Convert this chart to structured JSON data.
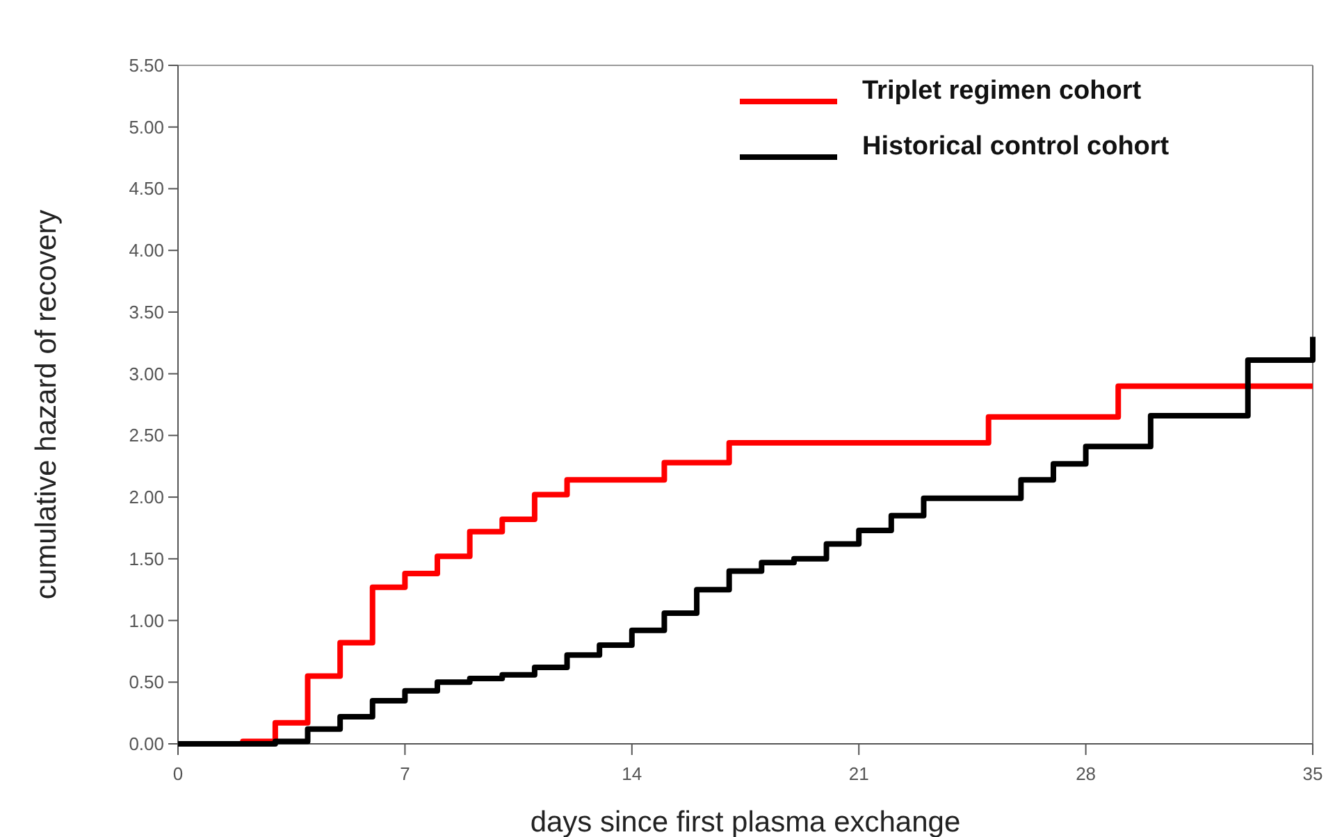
{
  "chart_data": {
    "type": "step",
    "xlabel": "days since first plasma exchange",
    "ylabel": "cumulative hazard of recovery",
    "xlim": [
      0,
      35
    ],
    "xticks": [
      0,
      7,
      14,
      21,
      28,
      35
    ],
    "ylim": [
      0,
      5.5
    ],
    "yticks": [
      {
        "value": 0,
        "label": "0.00"
      },
      {
        "value": 0.5,
        "label": "0.50"
      },
      {
        "value": 1,
        "label": "1.00"
      },
      {
        "value": 1.5,
        "label": "1.50"
      },
      {
        "value": 2,
        "label": "2.00"
      },
      {
        "value": 2.5,
        "label": "2.50"
      },
      {
        "value": 3,
        "label": "3.00"
      },
      {
        "value": 3.5,
        "label": "3.50"
      },
      {
        "value": 4,
        "label": "4.00"
      },
      {
        "value": 4.5,
        "label": "4.50"
      },
      {
        "value": 5,
        "label": "5.00"
      },
      {
        "value": 5.5,
        "label": "5.50"
      }
    ],
    "grid": false,
    "legend": "top right",
    "marker": "none",
    "line_style": "solid",
    "series": [
      {
        "name": "Triplet regimen cohort",
        "color": "#ff0000",
        "x": [
          0,
          2,
          3,
          4,
          5,
          6,
          7,
          8,
          9,
          10,
          11,
          12,
          15,
          17,
          25,
          29,
          35
        ],
        "values": [
          0,
          0.02,
          0.17,
          0.55,
          0.82,
          1.27,
          1.38,
          1.52,
          1.72,
          1.82,
          2.02,
          2.14,
          2.28,
          2.44,
          2.65,
          2.9,
          2.9
        ]
      },
      {
        "name": "Historical control cohort",
        "color": "#000000",
        "x": [
          0,
          3,
          4,
          5,
          6,
          7,
          8,
          9,
          10,
          11,
          12,
          13,
          14,
          15,
          16,
          17,
          18,
          19,
          20,
          21,
          22,
          23,
          26,
          27,
          28,
          30,
          33,
          35
        ],
        "values": [
          0,
          0.02,
          0.12,
          0.22,
          0.35,
          0.43,
          0.5,
          0.53,
          0.56,
          0.62,
          0.72,
          0.8,
          0.92,
          1.06,
          1.25,
          1.4,
          1.47,
          1.5,
          1.62,
          1.73,
          1.85,
          1.99,
          2.14,
          2.27,
          2.41,
          2.66,
          3.11,
          3.3
        ]
      }
    ]
  }
}
